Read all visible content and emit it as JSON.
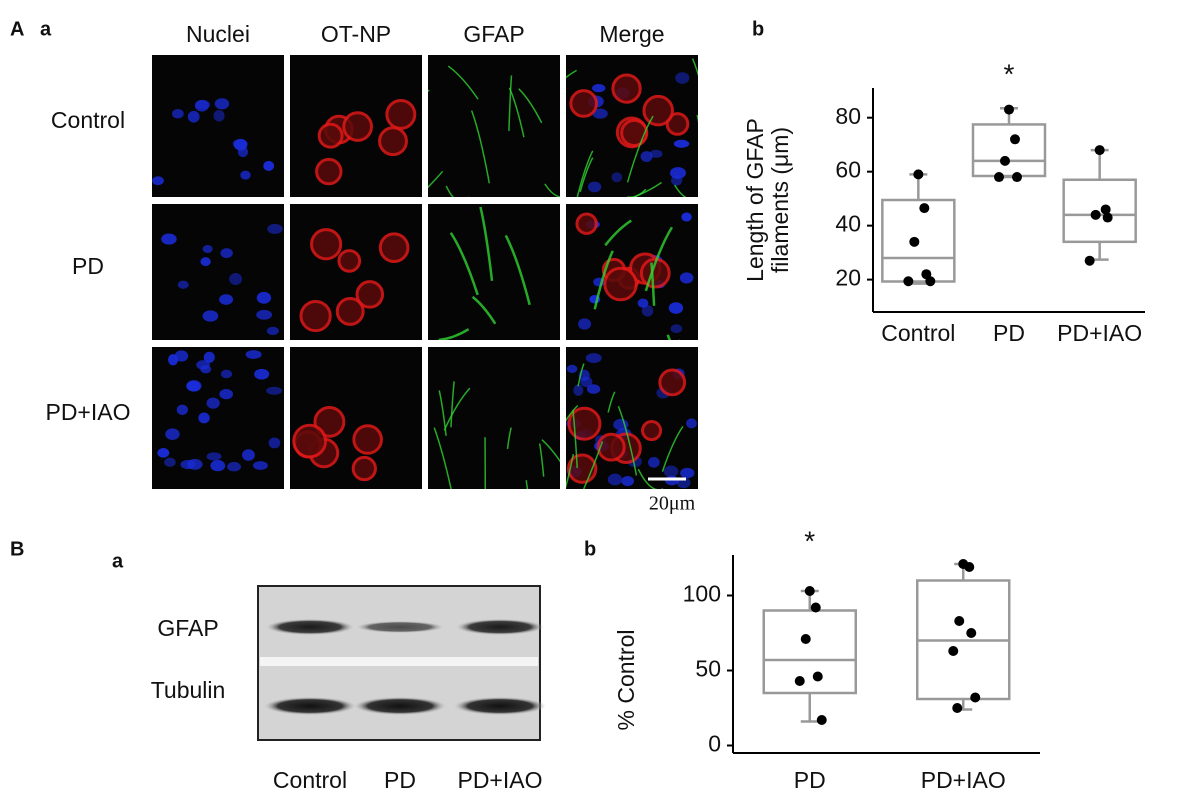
{
  "figure": {
    "panel_A": {
      "letter": "A",
      "sub_a": "a",
      "sub_b": "b",
      "columns": [
        "Nuclei",
        "OT-NP",
        "GFAP",
        "Merge"
      ],
      "rows": [
        "Control",
        "PD",
        "PD+IAO"
      ],
      "scale_bar": "20μm"
    },
    "panel_B": {
      "letter": "B",
      "sub_a": "a",
      "sub_b": "b",
      "blot_rows": [
        "GFAP",
        "Tubulin"
      ],
      "lanes": [
        "Control",
        "PD",
        "PD+IAO"
      ]
    }
  },
  "chart_data": [
    {
      "type": "box",
      "ylabel": [
        "Length of GFAP",
        "filaments (μm)"
      ],
      "categories": [
        "Control",
        "PD",
        "PD+IAO"
      ],
      "color": "#999999",
      "point_color": "#000000",
      "ylim": [
        8,
        91
      ],
      "yticks": [
        20,
        40,
        60,
        80
      ],
      "boxes": [
        {
          "whisker_low": 18.5,
          "q1": 19.3,
          "median": 28,
          "q3": 49.5,
          "whisker_high": 59,
          "points": [
            59,
            46.5,
            34,
            22,
            19.4,
            19.4
          ]
        },
        {
          "whisker_low": 58,
          "q1": 58.4,
          "median": 64,
          "q3": 77.5,
          "whisker_high": 83.5,
          "points": [
            83,
            72,
            64,
            58,
            58
          ]
        },
        {
          "whisker_low": 27.4,
          "q1": 34,
          "median": 44,
          "q3": 57,
          "whisker_high": 68,
          "points": [
            68,
            46,
            44,
            43,
            27
          ]
        }
      ],
      "annotations": [
        {
          "x": "PD",
          "text": "*"
        }
      ]
    },
    {
      "type": "box",
      "ylabel": [
        "% Control"
      ],
      "categories": [
        "PD",
        "PD+IAO"
      ],
      "color": "#999999",
      "point_color": "#000000",
      "ylim": [
        -5,
        127
      ],
      "yticks": [
        0,
        50,
        100
      ],
      "boxes": [
        {
          "whisker_low": 16,
          "q1": 35,
          "median": 57,
          "q3": 90,
          "whisker_high": 103,
          "points": [
            103,
            92,
            71,
            46,
            43,
            17
          ]
        },
        {
          "whisker_low": 24,
          "q1": 31,
          "median": 70,
          "q3": 110,
          "whisker_high": 121,
          "points": [
            121,
            119,
            83,
            75,
            63,
            32,
            25
          ]
        }
      ],
      "annotations": [
        {
          "x": "PD",
          "text": "*"
        }
      ]
    }
  ]
}
